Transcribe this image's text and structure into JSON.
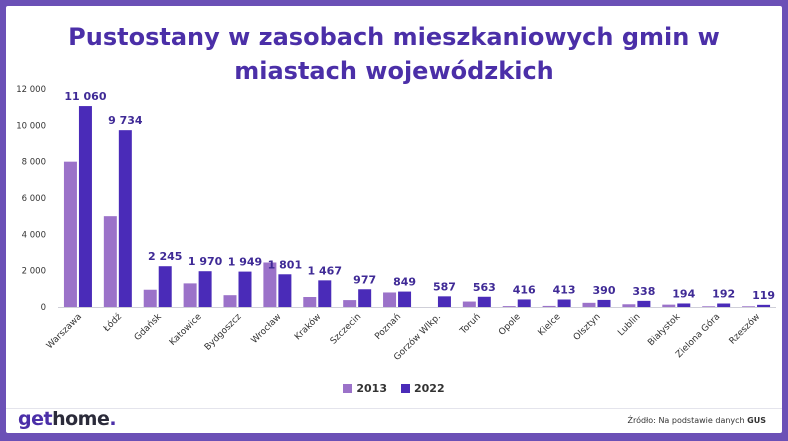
{
  "title_line1": "Pustostany w zasobach mieszkaniowych gmin w",
  "title_line2": "miastach wojewódzkich",
  "colors": {
    "s2013": "#9b72c9",
    "s2022": "#4a2bb8",
    "label": "#3f2a96",
    "frame": "#6b50b6"
  },
  "logo": {
    "part1": "get",
    "part2": "home",
    "dot": "."
  },
  "source": {
    "prefix": "Źródło: Na podstawie danych",
    "name": "GUS"
  },
  "chart_data": {
    "type": "bar",
    "title": "Pustostany w zasobach mieszkaniowych gmin w miastach wojewódzkich",
    "categories": [
      "Warszawa",
      "Łódź",
      "Gdańsk",
      "Katowice",
      "Bydgoszcz",
      "Wrocław",
      "Kraków",
      "Szczecin",
      "Poznań",
      "Gorzów Wlkp.",
      "Toruń",
      "Opole",
      "Kielce",
      "Olsztyn",
      "Lublin",
      "Białystok",
      "Zielona Góra",
      "Rzeszów"
    ],
    "series": [
      {
        "name": "2013",
        "values": [
          8000,
          5000,
          950,
          1300,
          650,
          2450,
          550,
          380,
          800,
          0,
          300,
          50,
          60,
          230,
          150,
          130,
          40,
          40
        ]
      },
      {
        "name": "2022",
        "values": [
          11060,
          9734,
          2245,
          1970,
          1949,
          1801,
          1467,
          977,
          849,
          587,
          563,
          416,
          413,
          390,
          338,
          194,
          192,
          119
        ]
      }
    ],
    "data_labels": [
      "11 060",
      "9 734",
      "2 245",
      "1 970",
      "1 949",
      "1 801",
      "1 467",
      "977",
      "849",
      "587",
      "563",
      "416",
      "413",
      "390",
      "338",
      "194",
      "192",
      "119"
    ],
    "yticks": [
      0,
      2000,
      4000,
      6000,
      8000,
      10000,
      12000
    ],
    "ytick_labels": [
      "0",
      "2 000",
      "4 000",
      "6 000",
      "8 000",
      "10 000",
      "12 000"
    ],
    "ylim": [
      0,
      12000
    ],
    "legend": [
      "2013",
      "2022"
    ],
    "legend_position": "bottom",
    "grid": false
  }
}
